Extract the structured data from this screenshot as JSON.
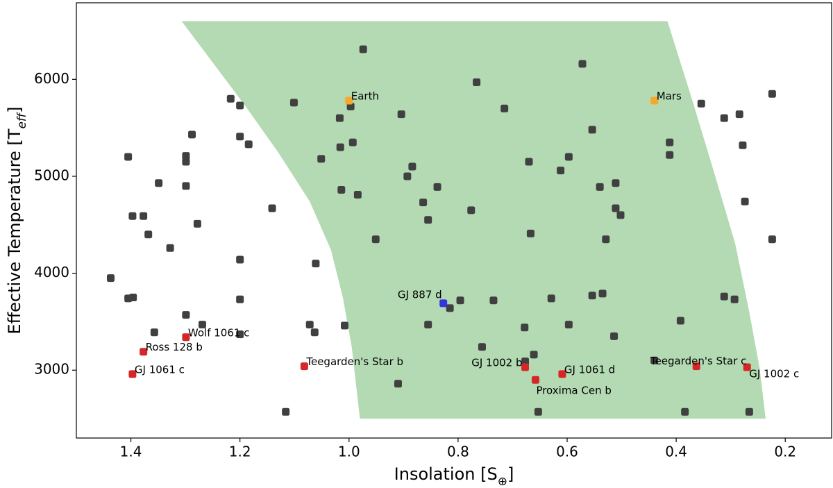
{
  "chart_data": {
    "type": "scatter",
    "xlabel": [
      "Insolation [S",
      "⊕",
      "]"
    ],
    "ylabel": [
      "Effective Temperature [T",
      "eff",
      "]"
    ],
    "xlim": [
      1.5,
      0.115
    ],
    "ylim": [
      2300,
      6790
    ],
    "xticks": [
      1.4,
      1.2,
      {
        "value": 1,
        "label": "1.0"
      },
      0.8,
      0.6,
      0.4,
      0.2
    ],
    "yticks": [
      3000,
      4000,
      5000,
      6000
    ],
    "grid": false,
    "habitable_zone": {
      "color": "#b3dab3",
      "x": [
        1.307,
        1.192,
        1.129,
        1.072,
        1.033,
        1.011,
        0.995,
        0.98,
        0.236,
        0.247,
        0.266,
        0.292,
        0.33,
        0.368,
        0.416
      ],
      "y": [
        6600,
        5740,
        5240,
        4740,
        4240,
        3740,
        3240,
        2500,
        2500,
        3020,
        3600,
        4310,
        5030,
        5740,
        6600
      ]
    },
    "series": [
      {
        "color": "#404040",
        "x": [
          0.974,
          0.572,
          0.766,
          1.217,
          1.2,
          1.101,
          0.997,
          0.904,
          0.715,
          0.224,
          0.354,
          0.284,
          0.312,
          1.017,
          1.288,
          1.2,
          1.184,
          0.993,
          1.016,
          0.554,
          0.412,
          0.278,
          1.405,
          1.299,
          1.299,
          0.412,
          1.051,
          0.597,
          0.67,
          0.884,
          0.612,
          0.893,
          1.349,
          1.299,
          1.014,
          0.838,
          0.511,
          0.54,
          0.984,
          0.864,
          0.274,
          1.141,
          0.776,
          0.511,
          0.502,
          1.397,
          1.377,
          0.855,
          1.278,
          1.368,
          0.667,
          0.951,
          0.529,
          0.224,
          1.328,
          1.2,
          1.061,
          1.437,
          1.405,
          1.396,
          1.2,
          0.796,
          0.735,
          0.629,
          0.554,
          0.535,
          0.312,
          0.293,
          0.815,
          1.299,
          0.392,
          1.072,
          0.855,
          0.597,
          1.008,
          1.269,
          0.678,
          1.063,
          1.2,
          0.514,
          1.357,
          0.756,
          0.661,
          0.677,
          0.44,
          0.91,
          1.116,
          0.653,
          0.384,
          0.266
        ],
        "y": [
          6310,
          6160,
          5970,
          5800,
          5730,
          5760,
          5720,
          5640,
          5700,
          5850,
          5750,
          5640,
          5600,
          5600,
          5430,
          5410,
          5330,
          5350,
          5300,
          5480,
          5350,
          5320,
          5200,
          5210,
          5150,
          5220,
          5180,
          5200,
          5150,
          5100,
          5060,
          5000,
          4930,
          4900,
          4860,
          4890,
          4930,
          4890,
          4810,
          4730,
          4740,
          4670,
          4650,
          4670,
          4600,
          4590,
          4590,
          4550,
          4510,
          4400,
          4410,
          4350,
          4350,
          4350,
          4260,
          4140,
          4100,
          3950,
          3740,
          3750,
          3730,
          3720,
          3720,
          3740,
          3770,
          3790,
          3760,
          3730,
          3640,
          3570,
          3510,
          3470,
          3470,
          3470,
          3460,
          3470,
          3440,
          3390,
          3370,
          3350,
          3390,
          3240,
          3160,
          3090,
          3100,
          2860,
          2570,
          2570,
          2570,
          2570
        ]
      },
      {
        "color": "#d62728",
        "x": [
          1.397,
          1.377,
          1.299,
          1.082,
          0.677,
          0.658,
          0.609,
          0.363,
          0.27
        ],
        "y": [
          2960,
          3190,
          3340,
          3040,
          3030,
          2900,
          2960,
          3040,
          3030
        ],
        "point_labels": [
          "GJ 1061 c",
          "Ross 128 b",
          "Wolf 1061 c",
          "Teegarden's Star b",
          "GJ 1002 b",
          "Proxima Cen b",
          "GJ 1061 d",
          "Teegarden's Star c",
          "GJ 1002 c"
        ]
      },
      {
        "color": "#3535dc",
        "x": [
          0.827
        ],
        "y": [
          3690
        ],
        "point_labels": [
          "GJ 887 d"
        ]
      },
      {
        "color": "#f5a82a",
        "x": [
          1.0,
          0.44
        ],
        "y": [
          5780,
          5780
        ],
        "point_labels": [
          "Earth",
          "Mars"
        ]
      }
    ]
  }
}
